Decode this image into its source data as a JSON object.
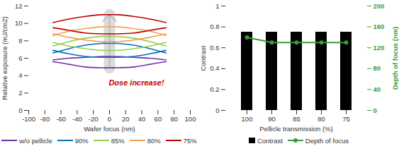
{
  "chart_data": [
    {
      "type": "line",
      "xlabel": "Wafer focus (nm)",
      "ylabel": "Relative exposure (mJ/cm2)",
      "x": [
        -70,
        -50,
        -30,
        -10,
        0,
        10,
        30,
        50,
        70
      ],
      "xlim": [
        -100,
        100
      ],
      "xticks": [
        -100,
        -80,
        -60,
        -40,
        -20,
        0,
        20,
        40,
        60,
        80,
        100
      ],
      "ylim": [
        0,
        12
      ],
      "yticks": [
        0,
        2,
        4,
        6,
        8,
        10,
        12
      ],
      "annotation": "Dose increase!",
      "legend": "bottom",
      "series": [
        {
          "name": "w/o pellicle",
          "color": "#7030a0",
          "upper": [
            5.8,
            6.0,
            6.1,
            6.2,
            6.2,
            6.2,
            6.1,
            6.0,
            5.8
          ],
          "lower": [
            5.6,
            5.3,
            5.0,
            4.9,
            4.9,
            4.9,
            5.0,
            5.3,
            5.6
          ]
        },
        {
          "name": "90%",
          "color": "#0070c0",
          "upper": [
            6.6,
            7.1,
            7.5,
            7.7,
            7.7,
            7.7,
            7.5,
            7.1,
            6.6
          ],
          "lower": [
            6.9,
            6.5,
            6.2,
            6.1,
            6.1,
            6.1,
            6.2,
            6.5,
            6.9
          ]
        },
        {
          "name": "85%",
          "color": "#92d050",
          "upper": [
            7.4,
            7.9,
            8.3,
            8.5,
            8.5,
            8.5,
            8.3,
            7.9,
            7.4
          ],
          "lower": [
            7.8,
            7.4,
            7.1,
            6.9,
            6.9,
            6.9,
            7.1,
            7.4,
            7.8
          ]
        },
        {
          "name": "80%",
          "color": "#f5a04e",
          "upper": [
            8.6,
            9.1,
            9.4,
            9.6,
            9.6,
            9.6,
            9.4,
            9.1,
            8.6
          ],
          "lower": [
            8.8,
            8.4,
            8.1,
            7.9,
            7.9,
            7.9,
            8.1,
            8.4,
            8.8
          ]
        },
        {
          "name": "75%",
          "color": "#c00000",
          "upper": [
            10.1,
            10.5,
            10.8,
            11.0,
            11.0,
            11.0,
            10.8,
            10.5,
            10.1
          ],
          "lower": [
            9.5,
            9.2,
            8.9,
            8.8,
            8.8,
            8.8,
            8.9,
            9.2,
            9.5
          ]
        }
      ]
    },
    {
      "type": "bar",
      "xlabel": "Pellicle transmission (%)",
      "ylabel": "Contrast",
      "y2label": "Depth of focus (nm)",
      "categories": [
        "100",
        "90",
        "85",
        "80",
        "75"
      ],
      "ylim": [
        0,
        1
      ],
      "yticks": [
        0,
        0.2,
        0.4,
        0.6,
        0.8,
        1
      ],
      "y2lim": [
        0,
        200
      ],
      "y2ticks": [
        0,
        40,
        80,
        120,
        160,
        200
      ],
      "legend": "bottom",
      "series": [
        {
          "name": "Contrast",
          "type": "bar",
          "color": "#000000",
          "values": [
            0.75,
            0.75,
            0.75,
            0.75,
            0.75
          ]
        },
        {
          "name": "Depth of focus",
          "type": "line",
          "color": "#3a9a3a",
          "marker": "circle",
          "axis": "y2",
          "values": [
            140,
            130,
            130,
            130,
            130
          ]
        }
      ]
    }
  ]
}
